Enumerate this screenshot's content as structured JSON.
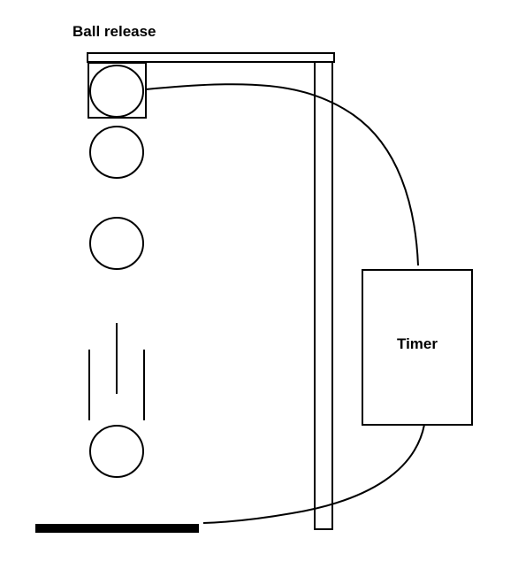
{
  "labels": {
    "ball_release": "Ball release",
    "timer": "Timer"
  },
  "colors": {
    "stroke": "#000000",
    "background": "#ffffff"
  },
  "icons": {
    "ball": "circle-outline",
    "release_box": "square-outline",
    "motion_lines": "vertical-lines",
    "impact_pad": "thick-horizontal-bar"
  }
}
